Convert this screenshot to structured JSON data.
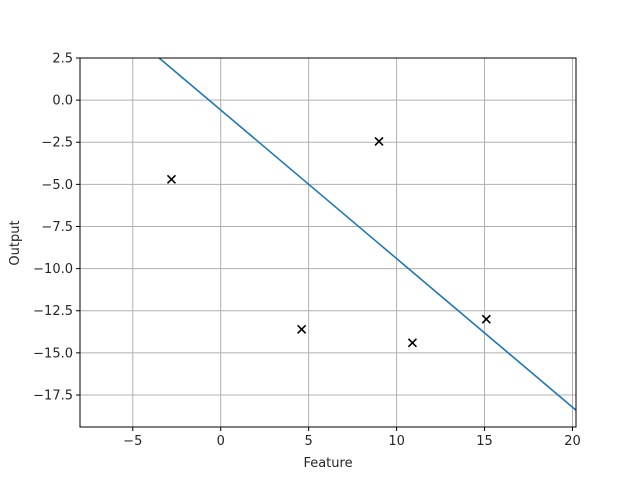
{
  "chart_data": {
    "type": "scatter",
    "title": "",
    "xlabel": "Feature",
    "ylabel": "Output",
    "xlim": [
      -8,
      20.2
    ],
    "ylim": [
      -19.4,
      2.5
    ],
    "xticks": [
      -5,
      0,
      5,
      10,
      15,
      20
    ],
    "xtick_labels": [
      "−5",
      "0",
      "5",
      "10",
      "15",
      "20"
    ],
    "yticks": [
      2.5,
      0.0,
      -2.5,
      -5.0,
      -7.5,
      -10.0,
      -12.5,
      -15.0,
      -17.5
    ],
    "ytick_labels": [
      "2.5",
      "0.0",
      "−2.5",
      "−5.0",
      "−7.5",
      "−10.0",
      "−12.5",
      "−15.0",
      "−17.5"
    ],
    "grid": true,
    "points": [
      {
        "x": -2.8,
        "y": -4.7
      },
      {
        "x": 4.6,
        "y": -13.6
      },
      {
        "x": 9.0,
        "y": -2.45
      },
      {
        "x": 10.9,
        "y": -14.4
      },
      {
        "x": 15.1,
        "y": -13.0
      }
    ],
    "marker": "x",
    "marker_color": "#000000",
    "line": {
      "x": [
        -3.5,
        20.2
      ],
      "y": [
        2.5,
        -18.4
      ],
      "color": "#1f77b4"
    }
  }
}
